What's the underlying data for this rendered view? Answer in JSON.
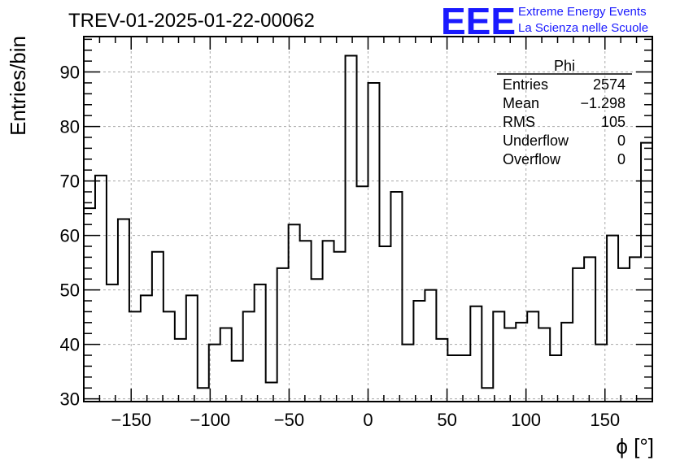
{
  "chart_data": {
    "type": "bar",
    "style": "step-histogram",
    "title": "TREV-01-2025-01-22-00062",
    "xlabel": "ϕ [°]",
    "ylabel": "Entries/bin",
    "xlim": [
      -180,
      180
    ],
    "ylim": [
      29.5,
      96.5
    ],
    "bin_width": 7.2,
    "x_ticks": [
      -150,
      -100,
      -50,
      0,
      50,
      100,
      150
    ],
    "x_tick_labels": [
      "−150",
      "−100",
      "−50",
      "0",
      "50",
      "100",
      "150"
    ],
    "y_ticks": [
      30,
      40,
      50,
      60,
      70,
      80,
      90
    ],
    "y_tick_labels": [
      "30",
      "40",
      "50",
      "60",
      "70",
      "80",
      "90"
    ],
    "grid": true,
    "values": [
      65,
      71,
      51,
      63,
      46,
      49,
      57,
      46,
      41,
      49,
      32,
      40,
      43,
      37,
      46,
      51,
      33,
      54,
      62,
      59,
      52,
      59,
      57,
      93,
      69,
      88,
      58,
      68,
      40,
      48,
      50,
      41,
      38,
      38,
      47,
      32,
      46,
      43,
      44,
      46,
      43,
      38,
      44,
      54,
      56,
      40,
      60,
      54,
      56,
      77
    ],
    "stats": {
      "name": "Phi",
      "rows": [
        {
          "label": "Entries",
          "value": "2574"
        },
        {
          "label": "Mean",
          "value": "−1.298"
        },
        {
          "label": "RMS",
          "value": "105"
        },
        {
          "label": "Underflow",
          "value": "0"
        },
        {
          "label": "Overflow",
          "value": "0"
        }
      ]
    },
    "colors": {
      "line": "#000000",
      "grid": "#a8a8a8",
      "logo": "#1a1aff"
    }
  },
  "logo": {
    "mark": "EEE",
    "line1": "Extreme Energy Events",
    "line2": "La Scienza nelle Scuole"
  }
}
